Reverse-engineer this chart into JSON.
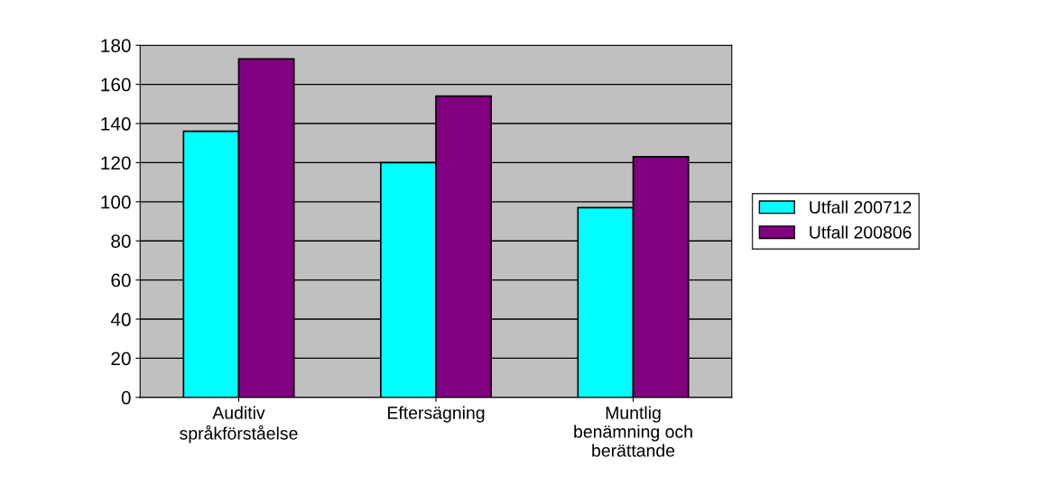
{
  "chart_data": {
    "type": "bar",
    "categories": [
      "Auditiv\nspråkförståelse",
      "Eftersägning",
      "Muntlig\nbenämning och\nberättande"
    ],
    "series": [
      {
        "name": "Utfall 200712",
        "color": "#00ffff",
        "values": [
          136,
          120,
          97
        ]
      },
      {
        "name": "Utfall 200806",
        "color": "#800080",
        "values": [
          173,
          154,
          123
        ]
      }
    ],
    "ylim": [
      0,
      180
    ],
    "yticks": [
      0,
      20,
      40,
      60,
      80,
      100,
      120,
      140,
      160,
      180
    ],
    "grid": "y",
    "legend": "right"
  }
}
